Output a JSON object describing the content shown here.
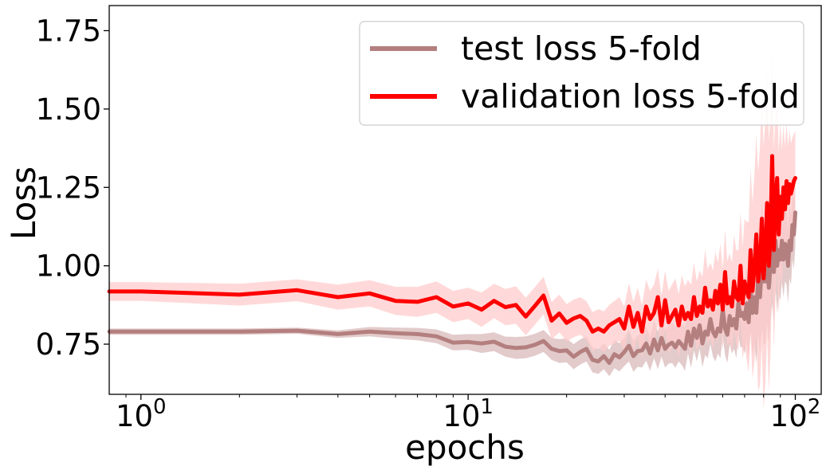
{
  "chart_data": {
    "type": "line",
    "xlabel": "epochs",
    "ylabel": "Loss",
    "xscale": "log",
    "xlim": [
      0.8,
      120
    ],
    "ylim": [
      0.59,
      1.83
    ],
    "grid": false,
    "legend_position": "top-right",
    "x_ticks": [
      {
        "value": 1,
        "base": "10",
        "exp": "0"
      },
      {
        "value": 10,
        "base": "10",
        "exp": "1"
      },
      {
        "value": 100,
        "base": "10",
        "exp": "2"
      }
    ],
    "y_ticks": [
      {
        "value": 0.75,
        "label": "0.75"
      },
      {
        "value": 1.0,
        "label": "1.00"
      },
      {
        "value": 1.25,
        "label": "1.25"
      },
      {
        "value": 1.5,
        "label": "1.50"
      },
      {
        "value": 1.75,
        "label": "1.75"
      }
    ],
    "x": [
      0.8,
      1,
      2,
      3,
      4,
      5,
      6,
      7,
      8,
      9,
      10,
      11,
      12,
      13,
      14,
      15,
      16,
      17,
      18,
      19,
      20,
      21,
      22,
      23,
      24,
      25,
      26,
      27,
      28,
      29,
      30,
      31,
      32,
      33,
      34,
      35,
      36,
      37,
      38,
      39,
      40,
      41,
      42,
      43,
      44,
      45,
      46,
      47,
      48,
      49,
      50,
      51,
      52,
      53,
      54,
      55,
      56,
      57,
      58,
      59,
      60,
      61,
      62,
      63,
      64,
      65,
      66,
      67,
      68,
      69,
      70,
      71,
      72,
      73,
      74,
      75,
      76,
      77,
      78,
      79,
      80,
      81,
      82,
      83,
      84,
      85,
      86,
      87,
      88,
      89,
      90,
      91,
      92,
      93,
      94,
      95,
      96,
      97,
      98,
      99,
      100
    ],
    "series": [
      {
        "name": "test loss 5-fold",
        "color": "#b47f7f",
        "band_color": "#d9b9b9",
        "values": [
          0.79,
          0.79,
          0.79,
          0.793,
          0.782,
          0.79,
          0.785,
          0.782,
          0.775,
          0.755,
          0.757,
          0.752,
          0.758,
          0.742,
          0.738,
          0.74,
          0.748,
          0.76,
          0.735,
          0.728,
          0.73,
          0.71,
          0.725,
          0.735,
          0.7,
          0.695,
          0.712,
          0.69,
          0.718,
          0.708,
          0.725,
          0.745,
          0.712,
          0.728,
          0.73,
          0.752,
          0.72,
          0.765,
          0.73,
          0.77,
          0.735,
          0.748,
          0.755,
          0.74,
          0.76,
          0.748,
          0.735,
          0.79,
          0.745,
          0.8,
          0.77,
          0.81,
          0.752,
          0.79,
          0.78,
          0.83,
          0.79,
          0.775,
          0.8,
          0.79,
          0.86,
          0.8,
          0.78,
          0.84,
          0.81,
          0.83,
          0.8,
          0.88,
          0.84,
          0.85,
          0.83,
          0.88,
          0.82,
          0.92,
          0.85,
          0.9,
          0.85,
          0.96,
          0.9,
          1.0,
          0.95,
          0.95,
          1.02,
          0.93,
          1.0,
          1.05,
          0.98,
          1.08,
          1.0,
          1.05,
          1.02,
          1.08,
          1.02,
          1.07,
          1.06,
          1.0,
          1.08,
          1.05,
          1.13,
          1.1,
          1.17
        ],
        "spread": [
          0.01,
          0.01,
          0.01,
          0.01,
          0.012,
          0.015,
          0.018,
          0.02,
          0.022,
          0.025,
          0.025,
          0.03,
          0.03,
          0.032,
          0.035,
          0.035,
          0.035,
          0.035,
          0.035,
          0.038,
          0.038,
          0.04,
          0.04,
          0.04,
          0.04,
          0.04,
          0.042,
          0.042,
          0.045,
          0.045,
          0.045,
          0.05,
          0.05,
          0.05,
          0.055,
          0.055,
          0.055,
          0.06,
          0.06,
          0.06,
          0.06,
          0.06,
          0.065,
          0.065,
          0.065,
          0.065,
          0.07,
          0.07,
          0.07,
          0.07,
          0.075,
          0.075,
          0.075,
          0.075,
          0.075,
          0.08,
          0.08,
          0.08,
          0.08,
          0.085,
          0.085,
          0.085,
          0.09,
          0.09,
          0.09,
          0.095,
          0.095,
          0.1,
          0.1,
          0.11,
          0.11,
          0.12,
          0.12,
          0.13,
          0.14,
          0.15,
          0.16,
          0.18,
          0.18,
          0.2,
          0.2,
          0.2,
          0.2,
          0.18,
          0.18,
          0.17,
          0.16,
          0.15,
          0.15,
          0.14,
          0.13,
          0.13,
          0.12,
          0.12,
          0.12,
          0.12,
          0.12,
          0.11,
          0.11,
          0.11,
          0.11
        ]
      },
      {
        "name": "validation loss 5-fold",
        "color": "#ff0000",
        "band_color": "#ffcccc",
        "values": [
          0.918,
          0.918,
          0.908,
          0.922,
          0.9,
          0.912,
          0.888,
          0.885,
          0.9,
          0.87,
          0.88,
          0.86,
          0.888,
          0.868,
          0.875,
          0.838,
          0.872,
          0.905,
          0.825,
          0.848,
          0.818,
          0.832,
          0.84,
          0.825,
          0.79,
          0.8,
          0.79,
          0.81,
          0.82,
          0.83,
          0.8,
          0.87,
          0.805,
          0.85,
          0.79,
          0.87,
          0.83,
          0.85,
          0.9,
          0.81,
          0.89,
          0.82,
          0.84,
          0.86,
          0.81,
          0.87,
          0.83,
          0.85,
          0.83,
          0.9,
          0.84,
          0.87,
          0.85,
          0.93,
          0.87,
          0.89,
          0.86,
          0.92,
          0.88,
          0.94,
          0.86,
          0.98,
          0.88,
          0.9,
          0.87,
          0.95,
          0.9,
          0.89,
          1.0,
          0.88,
          0.95,
          0.92,
          0.9,
          1.05,
          0.92,
          0.99,
          1.1,
          0.95,
          1.0,
          1.15,
          0.96,
          1.05,
          1.2,
          1.0,
          1.1,
          1.35,
          1.05,
          1.2,
          1.28,
          1.1,
          1.22,
          1.15,
          1.25,
          1.18,
          1.27,
          1.2,
          1.26,
          1.23,
          1.25,
          1.27,
          1.28
        ],
        "spread": [
          0.03,
          0.03,
          0.035,
          0.035,
          0.04,
          0.042,
          0.045,
          0.048,
          0.05,
          0.05,
          0.05,
          0.055,
          0.055,
          0.058,
          0.06,
          0.06,
          0.06,
          0.06,
          0.06,
          0.06,
          0.06,
          0.06,
          0.06,
          0.062,
          0.062,
          0.062,
          0.065,
          0.065,
          0.068,
          0.07,
          0.07,
          0.075,
          0.08,
          0.08,
          0.085,
          0.085,
          0.09,
          0.09,
          0.09,
          0.095,
          0.095,
          0.1,
          0.1,
          0.1,
          0.1,
          0.1,
          0.105,
          0.105,
          0.11,
          0.11,
          0.11,
          0.115,
          0.115,
          0.12,
          0.12,
          0.12,
          0.125,
          0.125,
          0.13,
          0.13,
          0.13,
          0.135,
          0.135,
          0.14,
          0.14,
          0.15,
          0.15,
          0.16,
          0.17,
          0.18,
          0.2,
          0.22,
          0.24,
          0.26,
          0.28,
          0.3,
          0.32,
          0.35,
          0.38,
          0.4,
          0.42,
          0.42,
          0.42,
          0.4,
          0.38,
          0.35,
          0.32,
          0.3,
          0.28,
          0.26,
          0.24,
          0.22,
          0.2,
          0.2,
          0.19,
          0.18,
          0.17,
          0.16,
          0.16,
          0.15,
          0.15
        ]
      }
    ]
  }
}
